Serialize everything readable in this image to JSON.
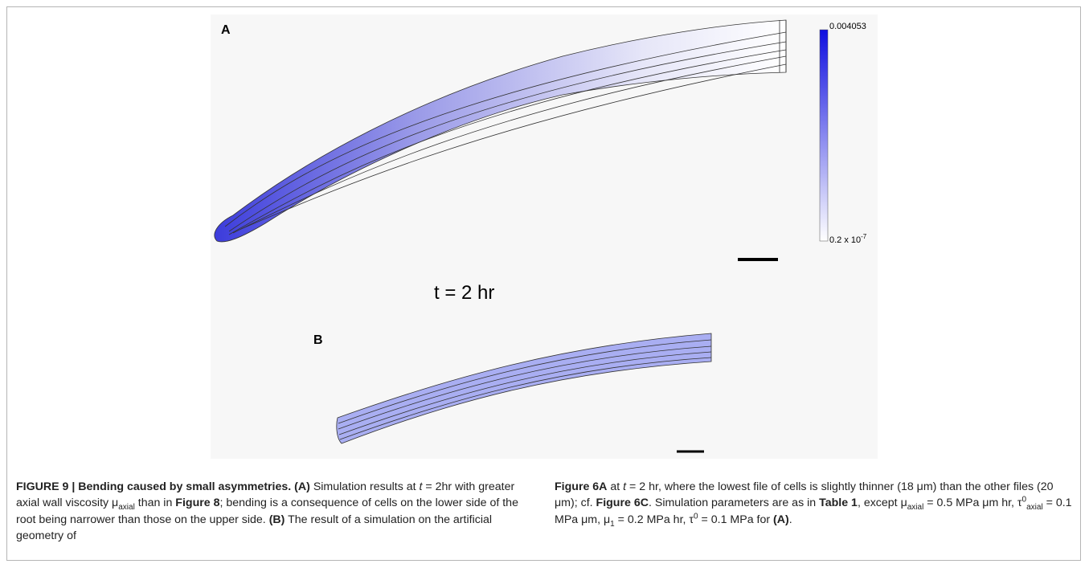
{
  "figure": {
    "panel_a": {
      "label": "A",
      "time_label": "t = 2 hr",
      "colorbar": {
        "max": "0.004053",
        "min": {
          "base": "0.2 x 10",
          "exponent": "-7"
        }
      }
    },
    "panel_b": {
      "label": "B"
    }
  },
  "caption": {
    "columns": [
      [
        {
          "text": "FIGURE 9 | Bending caused by small asymmetries. (A)",
          "style": "bold"
        },
        {
          "text": " Simulation results at "
        },
        {
          "text": "t",
          "style": "italic"
        },
        {
          "text": " = 2hr with greater axial wall viscosity μ"
        },
        {
          "text": "axial",
          "style": "sub"
        },
        {
          "text": " than in "
        },
        {
          "text": "Figure 8",
          "style": "bold"
        },
        {
          "text": "; bending is a consequence of cells on the lower side of the root being narrower than those on the upper side. "
        },
        {
          "text": "(B)",
          "style": "bold"
        },
        {
          "text": " The result of a simulation on the artificial geometry of"
        }
      ],
      [
        {
          "text": "Figure 6A",
          "style": "bold"
        },
        {
          "text": " at "
        },
        {
          "text": "t",
          "style": "italic"
        },
        {
          "text": " = 2 hr, where the lowest file of cells is slightly thinner (18 μm) than the other files (20 μm); cf. "
        },
        {
          "text": "Figure 6C",
          "style": "bold"
        },
        {
          "text": ". Simulation parameters are as in "
        },
        {
          "text": "Table 1",
          "style": "bold"
        },
        {
          "text": ", except μ"
        },
        {
          "text": "axial",
          "style": "sub"
        },
        {
          "text": " = 0.5 MPa μm hr, τ"
        },
        {
          "text": "0",
          "style": "sup"
        },
        {
          "text": "axial",
          "style": "sub"
        },
        {
          "text": " = 0.1 MPa μm, μ"
        },
        {
          "text": "1",
          "style": "sub"
        },
        {
          "text": " = 0.2 MPa hr, τ"
        },
        {
          "text": "0",
          "style": "sup"
        },
        {
          "text": " = 0.1 MPa for "
        },
        {
          "text": "(A)",
          "style": "bold"
        },
        {
          "text": "."
        }
      ]
    ]
  }
}
